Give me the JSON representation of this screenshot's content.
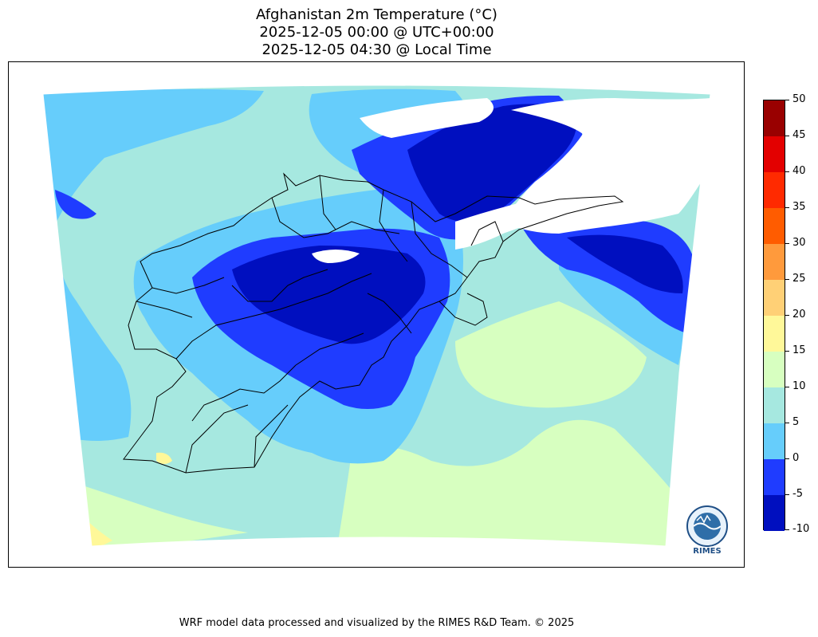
{
  "title": {
    "line1": "Afghanistan 2m Temperature (°C)",
    "line2": "2025-12-05 00:00 @ UTC+00:00",
    "line3": "2025-12-05 04:30 @ Local Time"
  },
  "colorbar": {
    "ticks": [
      "50",
      "45",
      "40",
      "35",
      "30",
      "25",
      "20",
      "15",
      "10",
      "5",
      "0",
      "-5",
      "-10"
    ],
    "colors": [
      "#000fbf",
      "#1f3cff",
      "#66cdfb",
      "#a6e8e0",
      "#d7ffc0",
      "#fff899",
      "#ffd076",
      "#ff9a3c",
      "#ff5c00",
      "#ff2a00",
      "#e30000",
      "#990000"
    ]
  },
  "logo": {
    "label": "RIMES",
    "icon": "rimes-logo-icon"
  },
  "footer": "WRF model data processed and visualized by the RIMES R&D Team. © 2025"
}
